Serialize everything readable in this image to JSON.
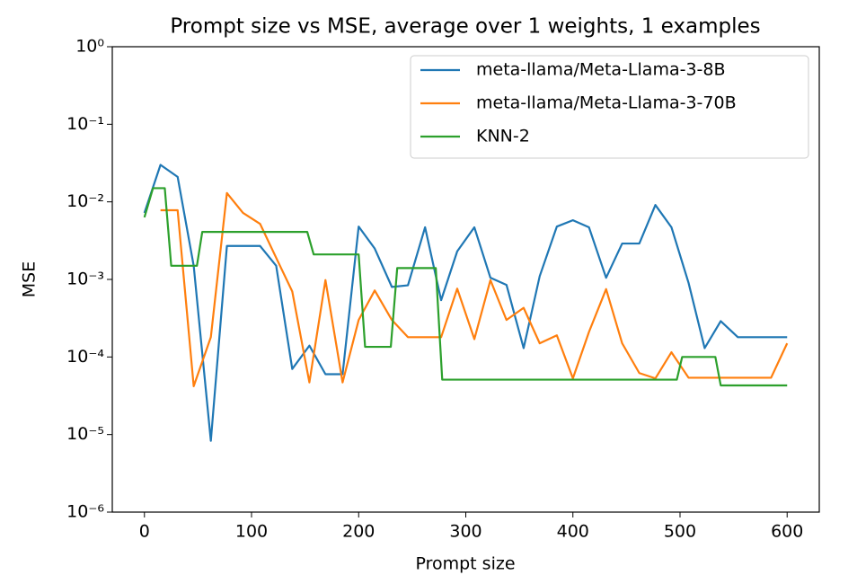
{
  "chart_data": {
    "type": "line",
    "title": "Prompt size vs MSE, average over 1 weights, 1 examples",
    "x_label": "Prompt size",
    "y_label": "MSE",
    "xlim": [
      -30,
      630
    ],
    "xticks": [
      0,
      100,
      200,
      300,
      400,
      500,
      600
    ],
    "ylim": [
      1e-06,
      1
    ],
    "log_y": true,
    "yticks": [
      {
        "value": 1e-06,
        "label": "10⁻⁶"
      },
      {
        "value": 1e-05,
        "label": "10⁻⁵"
      },
      {
        "value": 0.0001,
        "label": "10⁻⁴"
      },
      {
        "value": 0.001,
        "label": "10⁻³"
      },
      {
        "value": 0.01,
        "label": "10⁻²"
      },
      {
        "value": 0.1,
        "label": "10⁻¹"
      },
      {
        "value": 1,
        "label": "10⁰"
      }
    ],
    "legend": "upper right",
    "series": [
      {
        "name": "meta-llama/Meta-Llama-3-8B",
        "color": "#1f77b4",
        "x": [
          0,
          15,
          31,
          46,
          62,
          77,
          92,
          108,
          123,
          138,
          154,
          169,
          185,
          200,
          215,
          231,
          246,
          262,
          277,
          292,
          308,
          323,
          338,
          354,
          369,
          385,
          400,
          415,
          431,
          446,
          462,
          477,
          492,
          508,
          523,
          538,
          554,
          569,
          585,
          600
        ],
        "values": [
          0.0072,
          0.03,
          0.021,
          0.0015,
          8.3e-06,
          0.0027,
          0.0027,
          0.0027,
          0.0015,
          7e-05,
          0.00014,
          6e-05,
          6e-05,
          0.0048,
          0.0025,
          0.0008,
          0.00084,
          0.0047,
          0.00054,
          0.0023,
          0.0047,
          0.00105,
          0.00085,
          0.00013,
          0.0011,
          0.0048,
          0.0058,
          0.0047,
          0.00105,
          0.0029,
          0.0029,
          0.0091,
          0.0047,
          0.0009,
          0.00013,
          0.00029,
          0.00018,
          0.00018,
          0.00018,
          0.00018
        ]
      },
      {
        "name": "meta-llama/Meta-Llama-3-70B",
        "color": "#ff7f0e",
        "x": [
          0,
          15,
          31,
          46,
          62,
          77,
          92,
          108,
          123,
          138,
          154,
          169,
          185,
          200,
          215,
          231,
          246,
          262,
          277,
          292,
          308,
          323,
          338,
          354,
          369,
          385,
          400,
          415,
          431,
          446,
          462,
          477,
          492,
          508,
          523,
          538,
          554,
          569,
          585,
          600
        ],
        "values": [
          null,
          0.0078,
          0.0078,
          4.2e-05,
          0.00018,
          0.013,
          0.0072,
          0.0052,
          0.0019,
          0.0007,
          4.7e-05,
          0.00098,
          4.7e-05,
          0.0003,
          0.00072,
          0.0003,
          0.00018,
          0.00018,
          0.00018,
          0.00076,
          0.00017,
          0.00098,
          0.0003,
          0.00043,
          0.00015,
          0.00019,
          5.3e-05,
          0.00021,
          0.00075,
          0.00015,
          6.2e-05,
          5.3e-05,
          0.000115,
          5.4e-05,
          5.4e-05,
          5.4e-05,
          5.4e-05,
          5.4e-05,
          5.4e-05,
          0.00015
        ]
      },
      {
        "name": "KNN-2",
        "color": "#2ca02c",
        "x": [
          0,
          8,
          19,
          25,
          49,
          54,
          152,
          158,
          200,
          206,
          230,
          236,
          272,
          278,
          497,
          502,
          533,
          538,
          600
        ],
        "values": [
          0.0063,
          0.015,
          0.015,
          0.0015,
          0.0015,
          0.0041,
          0.0041,
          0.0021,
          0.0021,
          0.000135,
          0.000135,
          0.0014,
          0.0014,
          5.1e-05,
          5.1e-05,
          0.0001,
          0.0001,
          4.3e-05,
          4.3e-05
        ]
      }
    ]
  }
}
